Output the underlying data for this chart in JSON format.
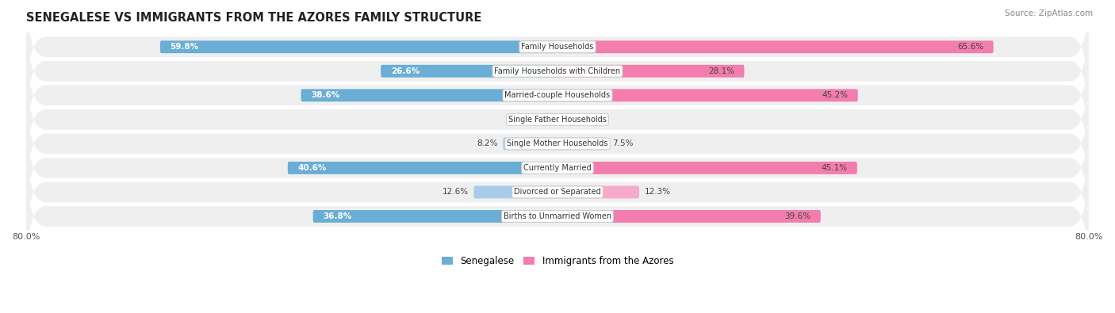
{
  "title": "SENEGALESE VS IMMIGRANTS FROM THE AZORES FAMILY STRUCTURE",
  "source": "Source: ZipAtlas.com",
  "categories": [
    "Family Households",
    "Family Households with Children",
    "Married-couple Households",
    "Single Father Households",
    "Single Mother Households",
    "Currently Married",
    "Divorced or Separated",
    "Births to Unmarried Women"
  ],
  "senegalese": [
    59.8,
    26.6,
    38.6,
    2.3,
    8.2,
    40.6,
    12.6,
    36.8
  ],
  "azores": [
    65.6,
    28.1,
    45.2,
    2.8,
    7.5,
    45.1,
    12.3,
    39.6
  ],
  "max_val": 80.0,
  "color_senegalese": "#6AAED6",
  "color_azores": "#F27DAE",
  "color_senegalese_light": "#A8CCE8",
  "color_azores_light": "#F5AACE",
  "background_row": "#F0F0F0",
  "legend_senegalese": "Senegalese",
  "legend_azores": "Immigrants from the Azores",
  "axis_label_left": "80.0%",
  "axis_label_right": "80.0%"
}
